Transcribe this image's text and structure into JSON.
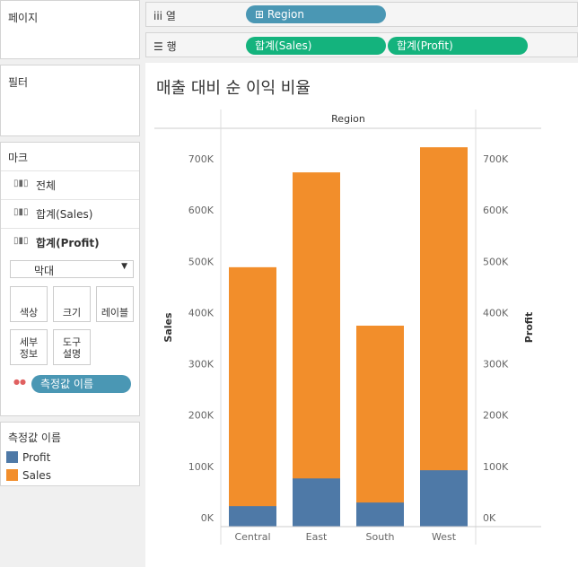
{
  "sidebar": {
    "pages": "페이지",
    "filters": "필터",
    "marks": {
      "title": "마크",
      "items": [
        "전체",
        "합계(Sales)",
        "합계(Profit)"
      ],
      "mark_type": "막대",
      "buttons": [
        [
          "색상"
        ],
        [
          "크기"
        ],
        [
          "레이블"
        ],
        [
          "세부",
          "정보"
        ],
        [
          "도구",
          "설명"
        ]
      ],
      "pill": "측정값 이름"
    },
    "legend_title": "측정값 이름"
  },
  "shelves": {
    "columns": {
      "label": "열",
      "pills": [
        "Region"
      ]
    },
    "rows": {
      "label": "행",
      "pills": [
        "합계(Sales)",
        "합계(Profit)"
      ]
    }
  },
  "chart_data": {
    "type": "bar",
    "title": "매출 대비 순 이익 비율",
    "header": "Region",
    "categories": [
      "Central",
      "East",
      "South",
      "West"
    ],
    "ylabel": "Sales",
    "y2label": "Profit",
    "series": [
      {
        "name": "Profit",
        "color": "#4e79a7",
        "axis": "y2",
        "values": [
          40000,
          94000,
          47000,
          110000
        ]
      },
      {
        "name": "Sales",
        "color": "#f28e2b",
        "values": [
          506000,
          691000,
          392000,
          740000
        ]
      }
    ],
    "ylim": [
      0,
      777000
    ],
    "yticks": [
      {
        "value": 0,
        "label": "0K"
      },
      {
        "value": 100000,
        "label": "100K"
      },
      {
        "value": 200000,
        "label": "200K"
      },
      {
        "value": 300000,
        "label": "300K"
      },
      {
        "value": 400000,
        "label": "400K"
      },
      {
        "value": 500000,
        "label": "500K"
      },
      {
        "value": 600000,
        "label": "600K"
      },
      {
        "value": 700000,
        "label": "700K"
      }
    ],
    "y2lim": [
      0,
      777000
    ],
    "y2ticks": [
      {
        "value": 0,
        "label": "0K"
      },
      {
        "value": 100000,
        "label": "100K"
      },
      {
        "value": 200000,
        "label": "200K"
      },
      {
        "value": 300000,
        "label": "300K"
      },
      {
        "value": 400000,
        "label": "400K"
      },
      {
        "value": 500000,
        "label": "500K"
      },
      {
        "value": 600000,
        "label": "600K"
      },
      {
        "value": 700000,
        "label": "700K"
      }
    ],
    "grid": false
  }
}
